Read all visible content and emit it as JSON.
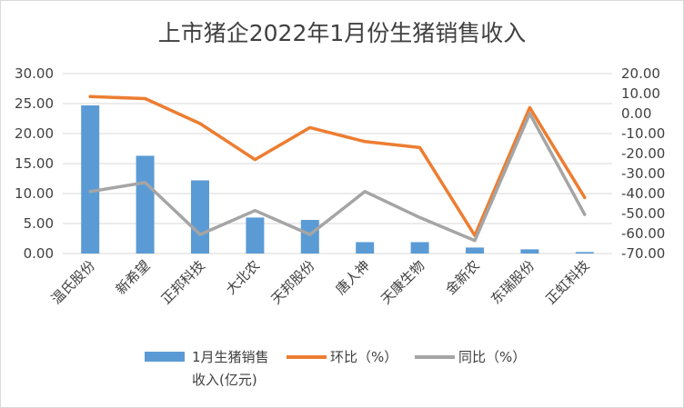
{
  "chart_data": {
    "type": "bar+line",
    "title": "上市猪企2022年1月份生猪销售收入",
    "categories": [
      "温氏股份",
      "新希望",
      "正邦科技",
      "大北农",
      "天邦股份",
      "唐人神",
      "天康生物",
      "金新农",
      "东瑞股份",
      "正虹科技"
    ],
    "y_left": {
      "ylim": [
        0,
        30
      ],
      "ticks": [
        "30.00",
        "25.00",
        "20.00",
        "15.00",
        "10.00",
        "5.00",
        "0.00"
      ]
    },
    "y_right": {
      "ylim": [
        -70,
        20
      ],
      "ticks": [
        "20.00",
        "10.00",
        "0.00",
        "-10.00",
        "-20.00",
        "-30.00",
        "-40.00",
        "-50.00",
        "-60.00",
        "-70.00"
      ]
    },
    "grid": true,
    "legend_position": "bottom",
    "series": [
      {
        "name": "1月生猪销售收入(亿元)",
        "legend_lines": [
          "1月生猪销售",
          "收入(亿元)"
        ],
        "kind": "bar",
        "axis": "left",
        "color": "#5b9bd5",
        "values": [
          24.7,
          16.3,
          12.2,
          6.0,
          5.6,
          1.9,
          1.9,
          1.0,
          0.7,
          0.25
        ]
      },
      {
        "name": "环比（%）",
        "kind": "line",
        "axis": "right",
        "color": "#ed7d31",
        "values": [
          8.5,
          7.5,
          -5.0,
          -23.0,
          -7.0,
          -14.0,
          -17.0,
          -61.0,
          3.0,
          -42.0
        ]
      },
      {
        "name": "同比（%）",
        "kind": "line",
        "axis": "right",
        "color": "#a5a5a5",
        "values": [
          -39.0,
          -34.5,
          -60.5,
          -48.5,
          -60.5,
          -39.0,
          -52.0,
          -63.5,
          0.0,
          -50.5
        ]
      }
    ]
  }
}
